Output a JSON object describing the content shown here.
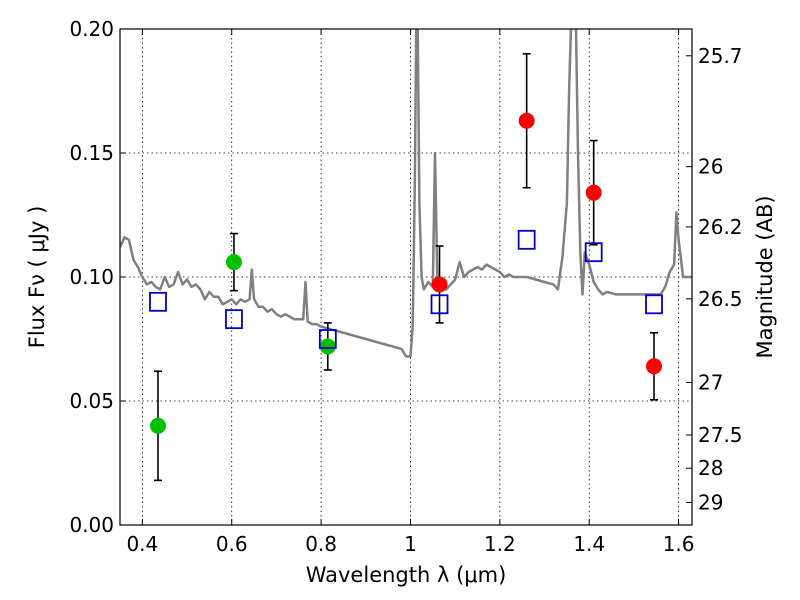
{
  "chart_data": {
    "type": "scatter",
    "title": "",
    "xlabel": "Wavelength  λ (μm)",
    "ylabel": "Flux  Fν  ( μJy )",
    "ylabel_right": "Magnitude (AB)",
    "xlim": [
      0.35,
      1.63
    ],
    "ylim": [
      0.0,
      0.2
    ],
    "grid": true,
    "x_ticks": [
      0.4,
      0.6,
      0.8,
      1.0,
      1.2,
      1.4,
      1.6
    ],
    "x_tick_labels": [
      "0.4",
      "0.6",
      "0.8",
      "1",
      "1.2",
      "1.4",
      "1.6"
    ],
    "y_ticks": [
      0.0,
      0.05,
      0.1,
      0.15,
      0.2
    ],
    "y_tick_labels": [
      "0.00",
      "0.05",
      "0.10",
      "0.15",
      "0.20"
    ],
    "right_ticks": [
      {
        "label": "25.7",
        "flux": 0.1892
      },
      {
        "label": "26",
        "flux": 0.1445
      },
      {
        "label": "26.2",
        "flux": 0.1202
      },
      {
        "label": "26.5",
        "flux": 0.0912
      },
      {
        "label": "27",
        "flux": 0.0575
      },
      {
        "label": "27.5",
        "flux": 0.0363
      },
      {
        "label": "28",
        "flux": 0.0229
      },
      {
        "label": "29",
        "flux": 0.0091
      }
    ],
    "series": [
      {
        "kind": "line",
        "color": "#808080",
        "points": [
          [
            0.35,
            0.112
          ],
          [
            0.36,
            0.116
          ],
          [
            0.37,
            0.115
          ],
          [
            0.38,
            0.107
          ],
          [
            0.39,
            0.104
          ],
          [
            0.4,
            0.1
          ],
          [
            0.41,
            0.097
          ],
          [
            0.42,
            0.098
          ],
          [
            0.43,
            0.096
          ],
          [
            0.44,
            0.095
          ],
          [
            0.45,
            0.1
          ],
          [
            0.46,
            0.096
          ],
          [
            0.47,
            0.097
          ],
          [
            0.48,
            0.102
          ],
          [
            0.49,
            0.097
          ],
          [
            0.5,
            0.099
          ],
          [
            0.51,
            0.096
          ],
          [
            0.52,
            0.097
          ],
          [
            0.53,
            0.095
          ],
          [
            0.54,
            0.091
          ],
          [
            0.55,
            0.094
          ],
          [
            0.56,
            0.092
          ],
          [
            0.57,
            0.092
          ],
          [
            0.58,
            0.089
          ],
          [
            0.59,
            0.09
          ],
          [
            0.6,
            0.091
          ],
          [
            0.61,
            0.089
          ],
          [
            0.62,
            0.091
          ],
          [
            0.63,
            0.09
          ],
          [
            0.64,
            0.091
          ],
          [
            0.645,
            0.103
          ],
          [
            0.65,
            0.091
          ],
          [
            0.66,
            0.088
          ],
          [
            0.67,
            0.088
          ],
          [
            0.68,
            0.086
          ],
          [
            0.69,
            0.087
          ],
          [
            0.7,
            0.085
          ],
          [
            0.71,
            0.084
          ],
          [
            0.72,
            0.085
          ],
          [
            0.73,
            0.084
          ],
          [
            0.74,
            0.083
          ],
          [
            0.75,
            0.083
          ],
          [
            0.76,
            0.083
          ],
          [
            0.765,
            0.098
          ],
          [
            0.77,
            0.082
          ],
          [
            0.78,
            0.081
          ],
          [
            0.79,
            0.081
          ],
          [
            0.8,
            0.08
          ],
          [
            0.82,
            0.079
          ],
          [
            0.84,
            0.078
          ],
          [
            0.86,
            0.077
          ],
          [
            0.88,
            0.076
          ],
          [
            0.9,
            0.075
          ],
          [
            0.92,
            0.074
          ],
          [
            0.94,
            0.073
          ],
          [
            0.96,
            0.072
          ],
          [
            0.98,
            0.071
          ],
          [
            0.99,
            0.068
          ],
          [
            1.0,
            0.068
          ],
          [
            1.005,
            0.08
          ],
          [
            1.01,
            0.14
          ],
          [
            1.013,
            0.205
          ],
          [
            1.016,
            0.205
          ],
          [
            1.02,
            0.13
          ],
          [
            1.025,
            0.1
          ],
          [
            1.03,
            0.095
          ],
          [
            1.04,
            0.098
          ],
          [
            1.05,
            0.096
          ],
          [
            1.055,
            0.15
          ],
          [
            1.06,
            0.1
          ],
          [
            1.07,
            0.097
          ],
          [
            1.08,
            0.095
          ],
          [
            1.09,
            0.097
          ],
          [
            1.1,
            0.099
          ],
          [
            1.11,
            0.106
          ],
          [
            1.12,
            0.1
          ],
          [
            1.13,
            0.102
          ],
          [
            1.14,
            0.103
          ],
          [
            1.15,
            0.104
          ],
          [
            1.16,
            0.103
          ],
          [
            1.17,
            0.105
          ],
          [
            1.18,
            0.104
          ],
          [
            1.19,
            0.103
          ],
          [
            1.2,
            0.102
          ],
          [
            1.21,
            0.1
          ],
          [
            1.22,
            0.101
          ],
          [
            1.23,
            0.1
          ],
          [
            1.24,
            0.1
          ],
          [
            1.25,
            0.1
          ],
          [
            1.26,
            0.1
          ],
          [
            1.28,
            0.099
          ],
          [
            1.3,
            0.098
          ],
          [
            1.32,
            0.097
          ],
          [
            1.33,
            0.095
          ],
          [
            1.34,
            0.108
          ],
          [
            1.35,
            0.13
          ],
          [
            1.355,
            0.175
          ],
          [
            1.36,
            0.205
          ],
          [
            1.37,
            0.205
          ],
          [
            1.375,
            0.15
          ],
          [
            1.38,
            0.11
          ],
          [
            1.385,
            0.093
          ],
          [
            1.39,
            0.11
          ],
          [
            1.4,
            0.105
          ],
          [
            1.41,
            0.098
          ],
          [
            1.42,
            0.095
          ],
          [
            1.43,
            0.093
          ],
          [
            1.44,
            0.094
          ],
          [
            1.46,
            0.093
          ],
          [
            1.48,
            0.093
          ],
          [
            1.5,
            0.093
          ],
          [
            1.52,
            0.093
          ],
          [
            1.54,
            0.093
          ],
          [
            1.56,
            0.093
          ],
          [
            1.57,
            0.096
          ],
          [
            1.58,
            0.102
          ],
          [
            1.59,
            0.105
          ],
          [
            1.595,
            0.126
          ],
          [
            1.6,
            0.115
          ],
          [
            1.61,
            0.1
          ],
          [
            1.63,
            0.1
          ]
        ]
      },
      {
        "kind": "points",
        "marker": "circle",
        "color": "#00c000",
        "points": [
          {
            "x": 0.435,
            "y": 0.04,
            "err": 0.022
          },
          {
            "x": 0.605,
            "y": 0.106,
            "err": 0.0115
          },
          {
            "x": 0.815,
            "y": 0.072,
            "err": 0.0095
          }
        ]
      },
      {
        "kind": "points",
        "marker": "circle",
        "color": "#ff0000",
        "points": [
          {
            "x": 1.065,
            "y": 0.097,
            "err": 0.0155
          },
          {
            "x": 1.26,
            "y": 0.163,
            "err": 0.027
          },
          {
            "x": 1.41,
            "y": 0.134,
            "err": 0.021
          },
          {
            "x": 1.545,
            "y": 0.064,
            "err": 0.0135
          }
        ]
      },
      {
        "kind": "points",
        "marker": "open-square",
        "color": "#0000cc",
        "points": [
          {
            "x": 0.435,
            "y": 0.09
          },
          {
            "x": 0.605,
            "y": 0.083
          },
          {
            "x": 0.815,
            "y": 0.075
          },
          {
            "x": 1.065,
            "y": 0.089
          },
          {
            "x": 1.26,
            "y": 0.115
          },
          {
            "x": 1.41,
            "y": 0.11
          },
          {
            "x": 1.545,
            "y": 0.089
          }
        ]
      }
    ]
  }
}
